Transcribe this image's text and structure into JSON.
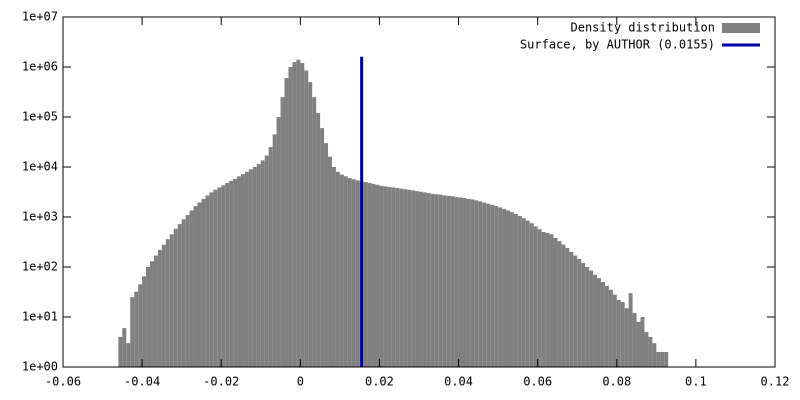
{
  "chart_data": {
    "type": "histogram",
    "bins": [
      -0.046,
      -0.045,
      -0.044,
      -0.043,
      -0.042,
      -0.041,
      -0.04,
      -0.039,
      -0.038,
      -0.037,
      -0.036,
      -0.035,
      -0.034,
      -0.033,
      -0.032,
      -0.031,
      -0.03,
      -0.029,
      -0.028,
      -0.027,
      -0.026,
      -0.025,
      -0.024,
      -0.023,
      -0.022,
      -0.021,
      -0.02,
      -0.019,
      -0.018,
      -0.017,
      -0.016,
      -0.015,
      -0.014,
      -0.013,
      -0.012,
      -0.011,
      -0.01,
      -0.009,
      -0.008,
      -0.007,
      -0.006,
      -0.005,
      -0.004,
      -0.003,
      -0.002,
      -0.001,
      0,
      0.001,
      0.002,
      0.003,
      0.004,
      0.005,
      0.006,
      0.007,
      0.008,
      0.009,
      0.01,
      0.011,
      0.012,
      0.013,
      0.014,
      0.015,
      0.016,
      0.017,
      0.018,
      0.019,
      0.02,
      0.021,
      0.022,
      0.023,
      0.024,
      0.025,
      0.026,
      0.027,
      0.028,
      0.029,
      0.03,
      0.031,
      0.032,
      0.033,
      0.034,
      0.035,
      0.036,
      0.037,
      0.038,
      0.039,
      0.04,
      0.041,
      0.042,
      0.043,
      0.044,
      0.045,
      0.046,
      0.047,
      0.048,
      0.049,
      0.05,
      0.051,
      0.052,
      0.053,
      0.054,
      0.055,
      0.056,
      0.057,
      0.058,
      0.059,
      0.06,
      0.061,
      0.062,
      0.063,
      0.064,
      0.065,
      0.066,
      0.067,
      0.068,
      0.069,
      0.07,
      0.071,
      0.072,
      0.073,
      0.074,
      0.075,
      0.076,
      0.077,
      0.078,
      0.079,
      0.08,
      0.081,
      0.082,
      0.083,
      0.084,
      0.085,
      0.086,
      0.087,
      0.088,
      0.089,
      0.09,
      0.091,
      0.092,
      0.093
    ],
    "series": [
      {
        "name": "Density distribution",
        "color": "#808080",
        "values": [
          4,
          6,
          3,
          25,
          32,
          45,
          65,
          100,
          130,
          170,
          220,
          280,
          360,
          450,
          580,
          720,
          900,
          1100,
          1350,
          1650,
          1950,
          2300,
          2700,
          3100,
          3500,
          3900,
          4300,
          4800,
          5300,
          5800,
          6500,
          7200,
          8000,
          9000,
          10000,
          11500,
          13500,
          17000,
          25000,
          45000,
          100000,
          250000,
          600000,
          1000000,
          1250000,
          1400000,
          1200000,
          850000,
          500000,
          250000,
          120000,
          60000,
          30000,
          16000,
          10000,
          8000,
          7000,
          6500,
          6000,
          5700,
          5400,
          5200,
          5000,
          4800,
          4600,
          4400,
          4200,
          4100,
          4000,
          3900,
          3800,
          3700,
          3600,
          3500,
          3400,
          3300,
          3200,
          3100,
          3000,
          2900,
          2850,
          2800,
          2700,
          2650,
          2600,
          2500,
          2450,
          2400,
          2300,
          2250,
          2150,
          2050,
          1950,
          1850,
          1750,
          1650,
          1550,
          1450,
          1350,
          1250,
          1150,
          1050,
          950,
          850,
          750,
          650,
          570,
          500,
          480,
          450,
          380,
          330,
          280,
          240,
          200,
          170,
          145,
          120,
          100,
          85,
          70,
          60,
          50,
          42,
          35,
          28,
          22,
          20,
          15,
          30,
          12,
          8,
          10,
          5,
          4,
          3,
          2,
          2,
          2
        ]
      },
      {
        "name": "Surface, by AUTHOR (0.0155)",
        "color": "#0000a8",
        "x": 0.0155,
        "y": [
          1,
          1600000
        ]
      }
    ],
    "xlim": [
      -0.06,
      0.12
    ],
    "xticks": [
      -0.06,
      -0.04,
      -0.02,
      0,
      0.02,
      0.04,
      0.06,
      0.08,
      0.1,
      0.12
    ],
    "ylim": [
      1,
      10000000
    ],
    "log_y": true,
    "yticks": [
      {
        "value": 1,
        "label": "1e+00"
      },
      {
        "value": 10,
        "label": "1e+01"
      },
      {
        "value": 100,
        "label": "1e+02"
      },
      {
        "value": 1000,
        "label": "1e+03"
      },
      {
        "value": 10000,
        "label": "1e+04"
      },
      {
        "value": 100000,
        "label": "1e+05"
      },
      {
        "value": 1000000,
        "label": "1e+06"
      },
      {
        "value": 10000000,
        "label": "1e+07"
      }
    ],
    "legend": "top-right"
  }
}
